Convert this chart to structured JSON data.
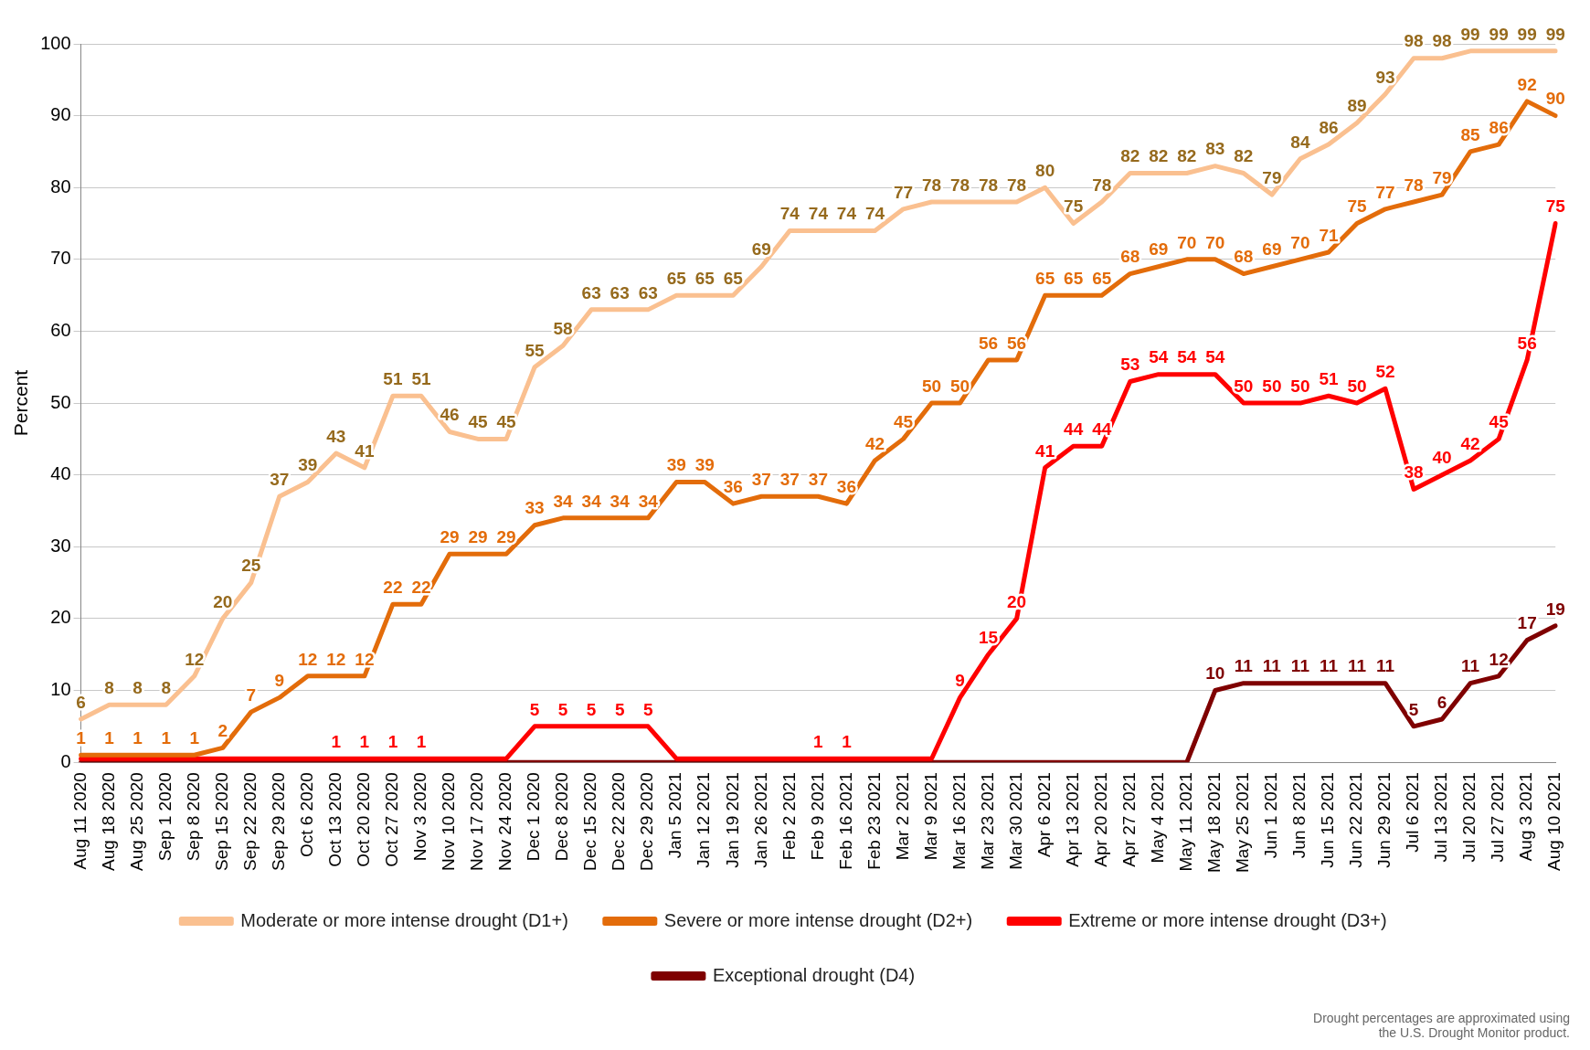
{
  "chart_data": {
    "type": "line",
    "ylabel": "Percent",
    "categories": [
      "Aug 11 2020",
      "Aug 18 2020",
      "Aug 25 2020",
      "Sep 1 2020",
      "Sep 8 2020",
      "Sep 15 2020",
      "Sep 22 2020",
      "Sep 29 2020",
      "Oct 6 2020",
      "Oct 13 2020",
      "Oct 20 2020",
      "Oct 27 2020",
      "Nov 3 2020",
      "Nov 10 2020",
      "Nov 17 2020",
      "Nov 24 2020",
      "Dec 1 2020",
      "Dec 8 2020",
      "Dec 15 2020",
      "Dec 22 2020",
      "Dec 29 2020",
      "Jan 5 2021",
      "Jan 12 2021",
      "Jan 19 2021",
      "Jan 26 2021",
      "Feb 2 2021",
      "Feb 9 2021",
      "Feb 16 2021",
      "Feb 23 2021",
      "Mar 2 2021",
      "Mar 9 2021",
      "Mar 16 2021",
      "Mar 23 2021",
      "Mar 30 2021",
      "Apr 6 2021",
      "Apr 13 2021",
      "Apr 20 2021",
      "Apr 27 2021",
      "May 4 2021",
      "May 11 2021",
      "May 18 2021",
      "May 25 2021",
      "Jun 1 2021",
      "Jun 8 2021",
      "Jun 15 2021",
      "Jun 22 2021",
      "Jun 29 2021",
      "Jul 6 2021",
      "Jul 13 2021",
      "Jul 20 2021",
      "Jul 27 2021",
      "Aug 3 2021",
      "Aug 10 2021"
    ],
    "series": [
      {
        "name": "Moderate or more intense drought (D1+)",
        "color": "#fac090",
        "values": [
          6,
          8,
          8,
          8,
          12,
          20,
          25,
          37,
          39,
          43,
          41,
          51,
          51,
          46,
          45,
          45,
          55,
          58,
          63,
          63,
          63,
          65,
          65,
          65,
          69,
          74,
          74,
          74,
          74,
          77,
          78,
          78,
          78,
          78,
          80,
          75,
          78,
          82,
          82,
          82,
          83,
          82,
          79,
          84,
          86,
          89,
          93,
          98,
          98,
          99,
          99,
          99,
          99
        ],
        "value_labels": [
          "6",
          "8",
          "8",
          "8",
          "12",
          "20",
          "25",
          "37",
          "39",
          "43",
          "41",
          "51",
          "51",
          "46",
          "45",
          "45",
          "55",
          "58",
          "63",
          "63",
          "63",
          "65",
          "65",
          "65",
          "69",
          "74",
          "74",
          "74",
          "74",
          "77",
          "78",
          "78",
          "78",
          "78",
          "80",
          "75",
          "78",
          "82",
          "82",
          "82",
          "83",
          "82",
          "79",
          "84",
          "86",
          "89",
          "93",
          "98",
          "98",
          "99",
          "99",
          "99",
          "99"
        ]
      },
      {
        "name": "Severe or more intense drought (D2+)",
        "color": "#e36c0a",
        "values": [
          1,
          1,
          1,
          1,
          1,
          2,
          7,
          9,
          12,
          12,
          12,
          22,
          22,
          29,
          29,
          29,
          33,
          34,
          34,
          34,
          34,
          39,
          39,
          36,
          37,
          37,
          37,
          36,
          42,
          45,
          50,
          50,
          56,
          56,
          65,
          65,
          65,
          68,
          69,
          70,
          70,
          68,
          69,
          70,
          71,
          75,
          77,
          78,
          79,
          85,
          86,
          92,
          90
        ],
        "value_labels": [
          "1",
          "1",
          "1",
          "1",
          "1",
          "2",
          "7",
          "9",
          "12",
          "12",
          "12",
          "22",
          "22",
          "29",
          "29",
          "29",
          "33",
          "34",
          "34",
          "34",
          "34",
          "39",
          "39",
          "36",
          "37",
          "37",
          "37",
          "36",
          "42",
          "45",
          "50",
          "50",
          "56",
          "56",
          "65",
          "65",
          "65",
          "68",
          "69",
          "70",
          "70",
          "68",
          "69",
          "70",
          "71",
          "75",
          "77",
          "78",
          "79",
          "85",
          "86",
          "92",
          "90"
        ]
      },
      {
        "name": "Extreme or more intense drought (D3+)",
        "color": "#ff0000",
        "values": [
          0.5,
          0.5,
          0.5,
          0.5,
          0.5,
          0.5,
          0.5,
          0.5,
          0.5,
          0.5,
          0.5,
          0.5,
          0.5,
          0.5,
          0.5,
          0.5,
          5,
          5,
          5,
          5,
          5,
          0.5,
          0.5,
          0.5,
          0.5,
          0.5,
          0.5,
          0.5,
          0.5,
          0.5,
          0.5,
          9,
          15,
          20,
          41,
          44,
          44,
          53,
          54,
          54,
          54,
          50,
          50,
          50,
          51,
          50,
          52,
          38,
          40,
          42,
          45,
          56,
          75
        ],
        "value_labels": [
          null,
          null,
          null,
          null,
          null,
          null,
          null,
          null,
          null,
          "1",
          "1",
          "1",
          "1",
          null,
          null,
          null,
          "5",
          "5",
          "5",
          "5",
          "5",
          null,
          null,
          null,
          null,
          null,
          "1",
          "1",
          null,
          null,
          null,
          "9",
          "15",
          "20",
          "41",
          "44",
          "44",
          "53",
          "54",
          "54",
          "54",
          "50",
          "50",
          "50",
          "51",
          "50",
          "52",
          "38",
          "40",
          "42",
          "45",
          "56",
          "75"
        ]
      },
      {
        "name": "Exceptional drought (D4)",
        "color": "#7f0000",
        "values": [
          0,
          0,
          0,
          0,
          0,
          0,
          0,
          0,
          0,
          0,
          0,
          0,
          0,
          0,
          0,
          0,
          0,
          0,
          0,
          0,
          0,
          0,
          0,
          0,
          0,
          0,
          0,
          0,
          0,
          0,
          0,
          0,
          0,
          0,
          0,
          0,
          0,
          0,
          0,
          0,
          10,
          11,
          11,
          11,
          11,
          11,
          11,
          5,
          6,
          11,
          12,
          17,
          19
        ],
        "value_labels": [
          null,
          null,
          null,
          null,
          null,
          null,
          null,
          null,
          null,
          null,
          null,
          null,
          null,
          null,
          null,
          null,
          null,
          null,
          null,
          null,
          null,
          null,
          null,
          null,
          null,
          null,
          null,
          null,
          null,
          null,
          null,
          null,
          null,
          null,
          null,
          null,
          null,
          null,
          null,
          null,
          "10",
          "11",
          "11",
          "11",
          "11",
          "11",
          "11",
          "5",
          "6",
          "11",
          "12",
          "17",
          "19"
        ]
      }
    ],
    "ylim": [
      0,
      100
    ],
    "yticks": [
      0,
      10,
      20,
      30,
      40,
      50,
      60,
      70,
      80,
      90,
      100
    ],
    "grid": "y",
    "legend": "bottom",
    "marker": "none",
    "line_style": "solid",
    "annotations": [
      "Drought percentages are approximated using the U.S. Drought Monitor product."
    ]
  }
}
